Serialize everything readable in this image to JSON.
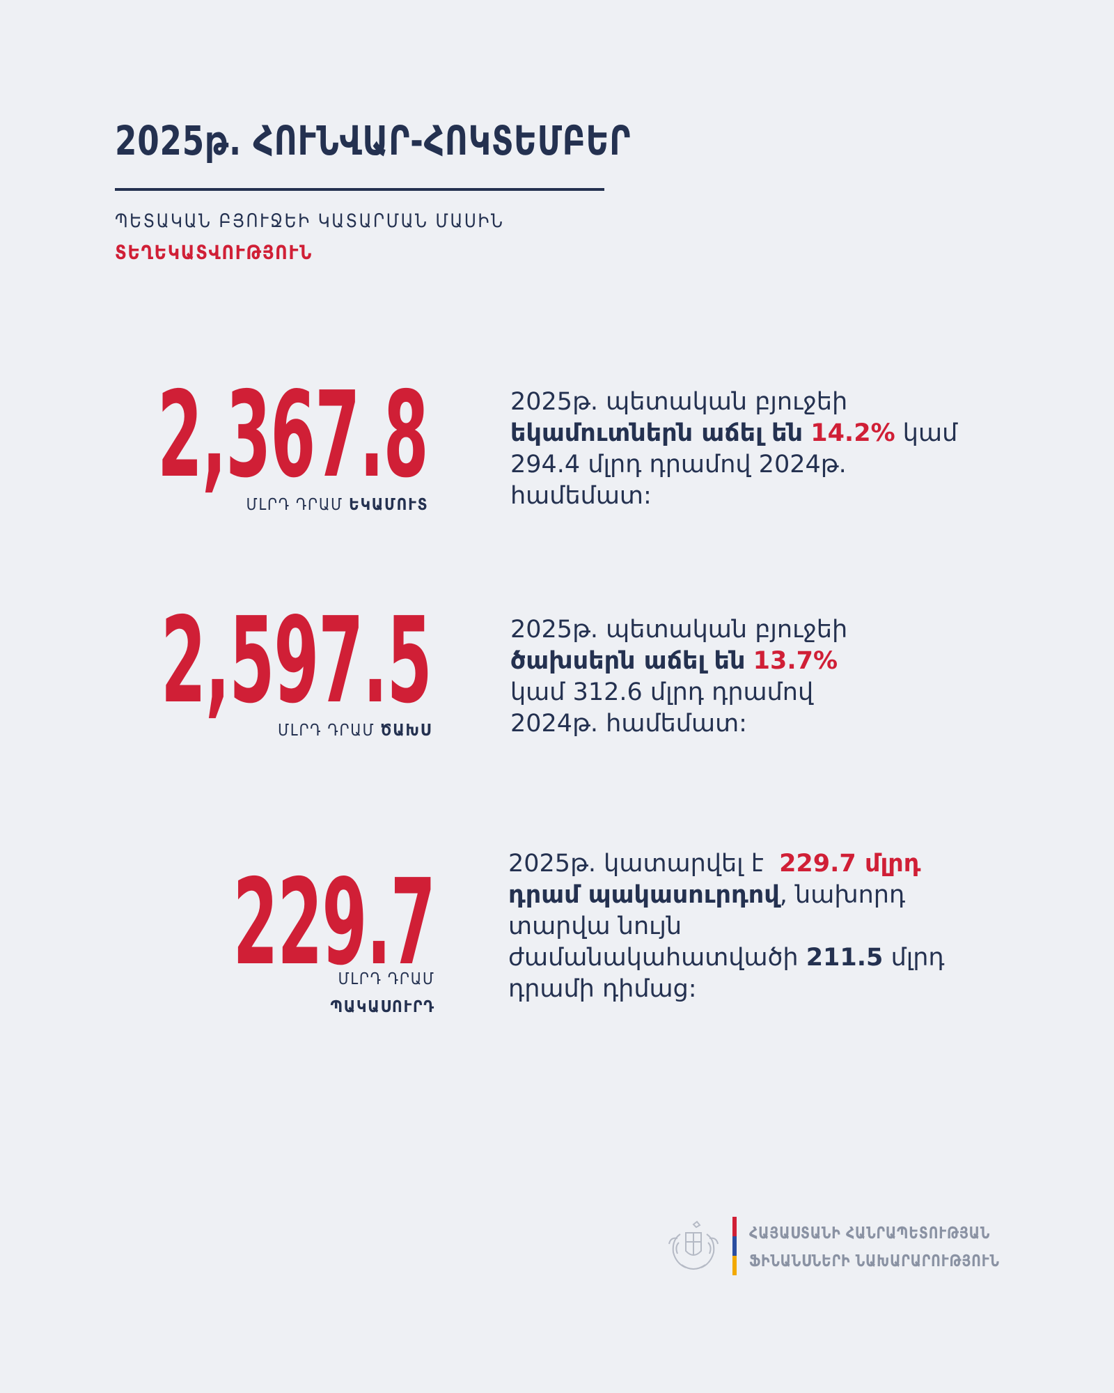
{
  "header": {
    "title": "2025թ. ՀՈՒՆՎԱՐ-ՀՈԿՏԵՄԲԵՐ",
    "subtitle": "ՊԵՏԱԿԱՆ ԲՅՈՒՋԵԻ ԿԱՏԱՐՄԱՆ ՄԱՍԻՆ",
    "subtitle_highlight": "ՏԵՂԵԿԱՏՎՈՒԹՅՈՒՆ"
  },
  "stats": [
    {
      "value": "2,367.8",
      "unit": "ՄԼՐԴ ԴՐԱՄ",
      "unit_bold": "ԵԿԱՄՈՒՏ",
      "desc": {
        "l1": "2025թ. պետական բյուջեի",
        "l2_bold": "եկամուտներն աճել են",
        "l2_red": "14.2%",
        "l2_tail": "կամ",
        "l3": "294.4 մլրդ դրամով 2024թ.",
        "l4": "համեմատ:"
      }
    },
    {
      "value": "2,597.5",
      "unit": "ՄԼՐԴ ԴՐԱՄ",
      "unit_bold": "ԾԱԽՍ",
      "desc": {
        "l1": "2025թ. պետական բյուջեի",
        "l2_bold": "ծախսերն աճել են",
        "l2_red": "13.7%",
        "l3": "կամ 312.6 մլրդ դրամով",
        "l4": "2024թ. համեմատ:"
      }
    },
    {
      "value": "229.7",
      "unit": "ՄԼՐԴ ԴՐԱՄ",
      "unit_bold": "ՊԱԿԱՍՈՒՐԴ",
      "desc": {
        "l1_pre": "2025թ. կատարվել է",
        "l1_red": "229.7 մլրդ",
        "l2_bold": "դրամ պակասուրդով",
        "l2_tail": ", նախորդ",
        "l3": "տարվա նույն",
        "l4_pre": "ժամանակահատվածի",
        "l4_bold": "211.5",
        "l4_tail": "մլրդ",
        "l5": "դրամի դիմաց:"
      }
    }
  ],
  "footer": {
    "line1": "ՀԱՅԱՍՏԱՆԻ ՀԱՆՐԱՊԵՏՈՒԹՅԱՆ",
    "line2": "ՖԻՆԱՆՍՆԵՐԻ ՆԱԽԱՐԱՐՈՒԹՅՈՒՆ"
  },
  "colors": {
    "navy": "#243150",
    "red": "#d01f36",
    "background": "#eef0f4",
    "flag": [
      "#d01f36",
      "#2a4da0",
      "#f2a900"
    ]
  }
}
